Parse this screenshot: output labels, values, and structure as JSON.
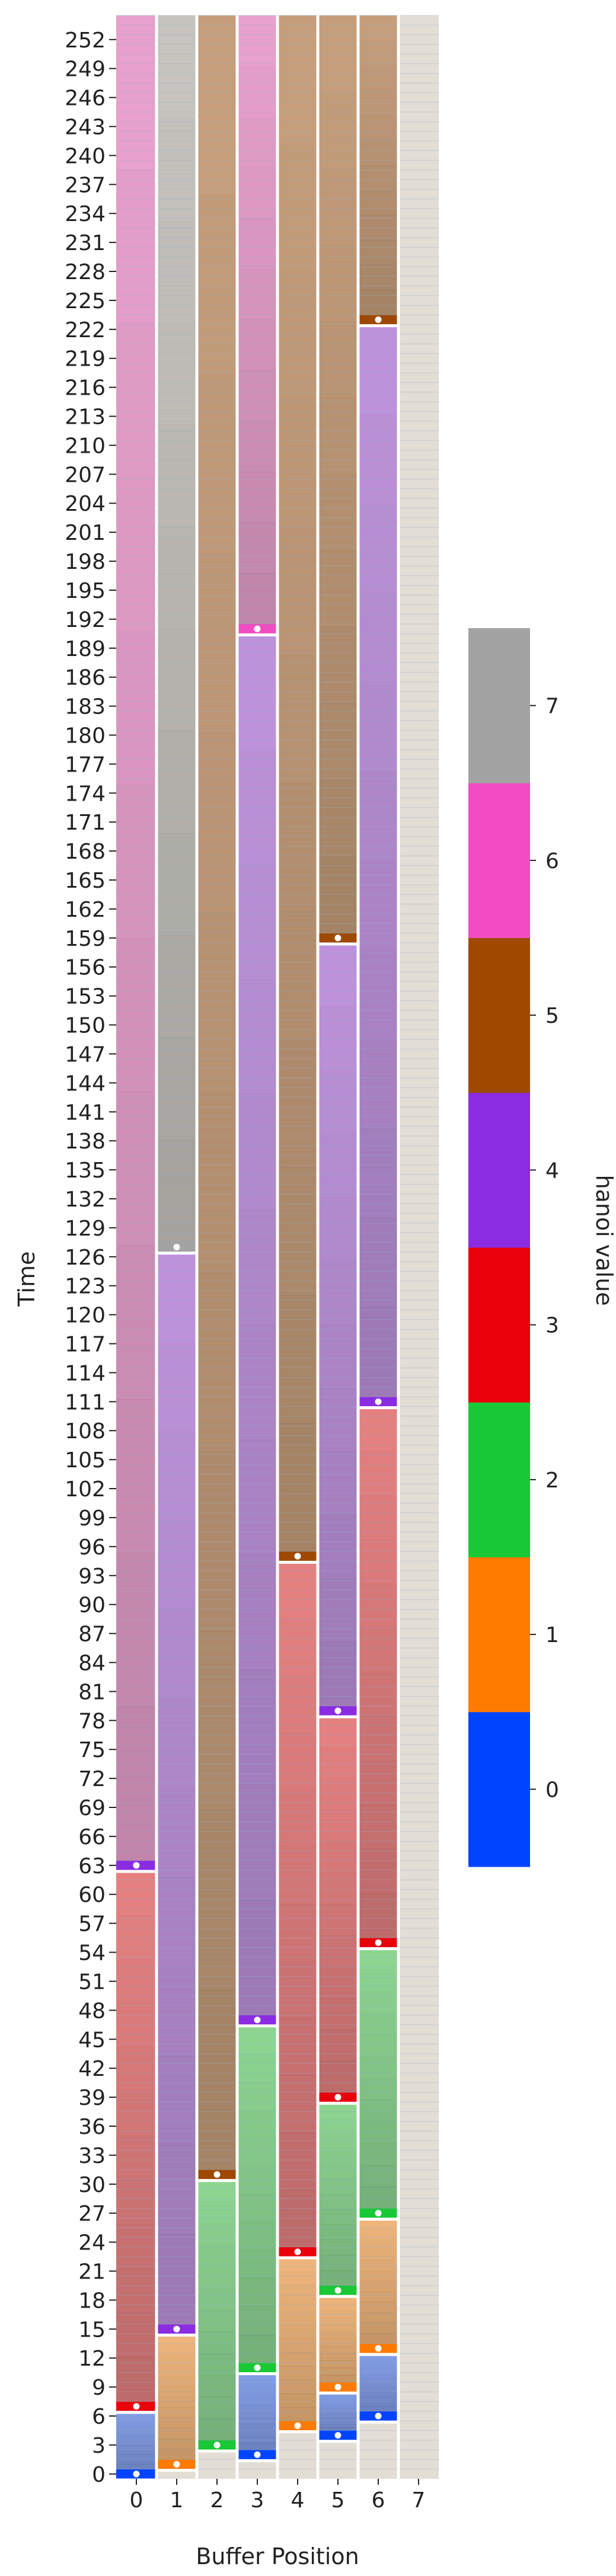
{
  "chart_data": {
    "type": "heatmap",
    "xlabel": "Buffer Position",
    "ylabel": "Time",
    "x_ticks": [
      "0",
      "1",
      "2",
      "3",
      "4",
      "5",
      "6",
      "7"
    ],
    "y_ticks": [
      0,
      3,
      6,
      9,
      12,
      15,
      18,
      21,
      24,
      27,
      30,
      33,
      36,
      39,
      42,
      45,
      48,
      51,
      54,
      57,
      60,
      63,
      66,
      69,
      72,
      75,
      78,
      81,
      84,
      87,
      90,
      93,
      96,
      99,
      102,
      105,
      108,
      111,
      114,
      117,
      120,
      123,
      126,
      129,
      132,
      135,
      138,
      141,
      144,
      147,
      150,
      153,
      156,
      159,
      162,
      165,
      168,
      171,
      174,
      177,
      180,
      183,
      186,
      189,
      192,
      195,
      198,
      201,
      204,
      207,
      210,
      213,
      216,
      219,
      222,
      225,
      228,
      231,
      234,
      237,
      240,
      243,
      246,
      249,
      252
    ],
    "time_range": [
      0,
      254
    ],
    "colorbar": {
      "label": "hanoi value",
      "ticks": [
        0,
        1,
        2,
        3,
        4,
        5,
        6,
        7
      ],
      "colors": [
        "#0044ff",
        "#ff7b00",
        "#18c935",
        "#e8000b",
        "#8b2be2",
        "#9f4800",
        "#f14cc1",
        "#a3a3a3"
      ]
    },
    "empty_color": "#e2ddd5",
    "segments": [
      {
        "column": 0,
        "value": 0,
        "start": 0,
        "end": 0
      },
      {
        "column": 0,
        "value": 0,
        "start": 1,
        "end": 6
      },
      {
        "column": 0,
        "value": 3,
        "start": 7,
        "end": 7
      },
      {
        "column": 0,
        "value": 3,
        "start": 8,
        "end": 62
      },
      {
        "column": 0,
        "value": 4,
        "start": 63,
        "end": 63
      },
      {
        "column": 0,
        "value": 6,
        "start": 64,
        "end": 254
      },
      {
        "column": 1,
        "value": 1,
        "start": 1,
        "end": 1
      },
      {
        "column": 1,
        "value": 1,
        "start": 2,
        "end": 14
      },
      {
        "column": 1,
        "value": 4,
        "start": 15,
        "end": 15
      },
      {
        "column": 1,
        "value": 4,
        "start": 16,
        "end": 126
      },
      {
        "column": 1,
        "value": 7,
        "start": 127,
        "end": 127
      },
      {
        "column": 1,
        "value": 7,
        "start": 128,
        "end": 254
      },
      {
        "column": 2,
        "value": 2,
        "start": 3,
        "end": 3
      },
      {
        "column": 2,
        "value": 2,
        "start": 4,
        "end": 30
      },
      {
        "column": 2,
        "value": 5,
        "start": 31,
        "end": 31
      },
      {
        "column": 2,
        "value": 5,
        "start": 32,
        "end": 254
      },
      {
        "column": 3,
        "value": 0,
        "start": 2,
        "end": 2
      },
      {
        "column": 3,
        "value": 0,
        "start": 3,
        "end": 10
      },
      {
        "column": 3,
        "value": 2,
        "start": 11,
        "end": 11
      },
      {
        "column": 3,
        "value": 2,
        "start": 12,
        "end": 46
      },
      {
        "column": 3,
        "value": 4,
        "start": 47,
        "end": 47
      },
      {
        "column": 3,
        "value": 4,
        "start": 48,
        "end": 190
      },
      {
        "column": 3,
        "value": 6,
        "start": 191,
        "end": 191
      },
      {
        "column": 3,
        "value": 6,
        "start": 192,
        "end": 254
      },
      {
        "column": 4,
        "value": 1,
        "start": 5,
        "end": 5
      },
      {
        "column": 4,
        "value": 1,
        "start": 6,
        "end": 22
      },
      {
        "column": 4,
        "value": 3,
        "start": 23,
        "end": 23
      },
      {
        "column": 4,
        "value": 3,
        "start": 24,
        "end": 94
      },
      {
        "column": 4,
        "value": 5,
        "start": 95,
        "end": 95
      },
      {
        "column": 4,
        "value": 5,
        "start": 96,
        "end": 254
      },
      {
        "column": 5,
        "value": 0,
        "start": 4,
        "end": 4
      },
      {
        "column": 5,
        "value": 0,
        "start": 5,
        "end": 8
      },
      {
        "column": 5,
        "value": 1,
        "start": 9,
        "end": 9
      },
      {
        "column": 5,
        "value": 1,
        "start": 10,
        "end": 18
      },
      {
        "column": 5,
        "value": 2,
        "start": 19,
        "end": 19
      },
      {
        "column": 5,
        "value": 2,
        "start": 20,
        "end": 38
      },
      {
        "column": 5,
        "value": 3,
        "start": 39,
        "end": 39
      },
      {
        "column": 5,
        "value": 3,
        "start": 40,
        "end": 78
      },
      {
        "column": 5,
        "value": 4,
        "start": 79,
        "end": 79
      },
      {
        "column": 5,
        "value": 4,
        "start": 80,
        "end": 158
      },
      {
        "column": 5,
        "value": 5,
        "start": 159,
        "end": 159
      },
      {
        "column": 5,
        "value": 5,
        "start": 160,
        "end": 254
      },
      {
        "column": 6,
        "value": 0,
        "start": 6,
        "end": 6
      },
      {
        "column": 6,
        "value": 0,
        "start": 7,
        "end": 12
      },
      {
        "column": 6,
        "value": 1,
        "start": 13,
        "end": 13
      },
      {
        "column": 6,
        "value": 1,
        "start": 14,
        "end": 26
      },
      {
        "column": 6,
        "value": 2,
        "start": 27,
        "end": 27
      },
      {
        "column": 6,
        "value": 2,
        "start": 28,
        "end": 54
      },
      {
        "column": 6,
        "value": 3,
        "start": 55,
        "end": 55
      },
      {
        "column": 6,
        "value": 3,
        "start": 56,
        "end": 110
      },
      {
        "column": 6,
        "value": 4,
        "start": 111,
        "end": 111
      },
      {
        "column": 6,
        "value": 4,
        "start": 112,
        "end": 222
      },
      {
        "column": 6,
        "value": 5,
        "start": 223,
        "end": 223
      },
      {
        "column": 6,
        "value": 5,
        "start": 224,
        "end": 254
      }
    ]
  }
}
